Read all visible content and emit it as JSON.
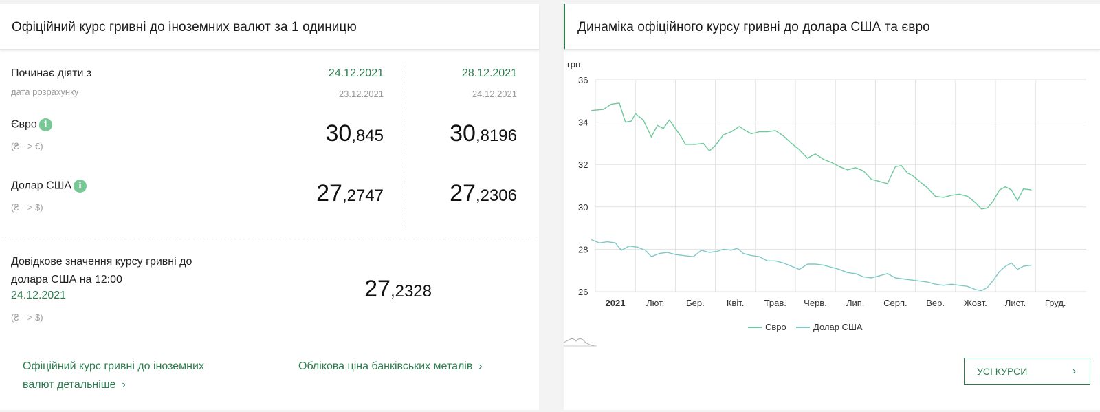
{
  "left": {
    "title": "Офіційний курс гривні до іноземних валют за 1 одиницю",
    "effective_label": "Починає діяти з",
    "calc_label": "дата розрахунку",
    "columns": [
      {
        "date": "24.12.2021",
        "calc_date": "23.12.2021"
      },
      {
        "date": "28.12.2021",
        "calc_date": "24.12.2021"
      }
    ],
    "currencies": [
      {
        "name": "Євро",
        "info": "i",
        "direction": "(₴ --> €)",
        "rates": [
          {
            "int": "30",
            "frac": ",845"
          },
          {
            "int": "30",
            "frac": ",8196"
          }
        ]
      },
      {
        "name": "Долар США",
        "info": "i",
        "direction": "(₴ --> $)",
        "rates": [
          {
            "int": "27",
            "frac": ",2747"
          },
          {
            "int": "27",
            "frac": ",2306"
          }
        ]
      }
    ],
    "reference": {
      "line1": "Довідкове значення курсу гривні до",
      "line2": "долара США на 12:00",
      "date": "24.12.2021",
      "direction": "(₴ --> $)",
      "int": "27",
      "frac": ",2328"
    },
    "links": {
      "details_line1": "Офіційний курс гривні до іноземних",
      "details_line2": "валют детальніше",
      "metals": "Облікова ціна банківських металів",
      "chevron": "›"
    }
  },
  "right": {
    "title": "Динаміка офіційного курсу гривні до долара США та євро",
    "button_label": "УСІ КУРСИ",
    "button_chevron": "›"
  },
  "chart_data": {
    "type": "line",
    "ylabel": "грн",
    "ylim": [
      26,
      36
    ],
    "yticks": [
      26,
      28,
      30,
      32,
      34,
      36
    ],
    "x_months": [
      "2021",
      "Лют.",
      "Бер.",
      "Квіт.",
      "Трав.",
      "Черв.",
      "Лип.",
      "Серп.",
      "Вер.",
      "Жовт.",
      "Лист.",
      "Груд."
    ],
    "grid": true,
    "legend_position": "bottom",
    "series": [
      {
        "name": "Євро",
        "color": "#6cc99a",
        "points": [
          [
            -0.1,
            34.55
          ],
          [
            0.2,
            34.6
          ],
          [
            0.4,
            34.85
          ],
          [
            0.6,
            34.9
          ],
          [
            0.75,
            34.0
          ],
          [
            0.9,
            34.05
          ],
          [
            1.0,
            34.4
          ],
          [
            1.2,
            34.1
          ],
          [
            1.4,
            33.3
          ],
          [
            1.55,
            33.85
          ],
          [
            1.7,
            33.7
          ],
          [
            1.85,
            34.1
          ],
          [
            2.0,
            33.7
          ],
          [
            2.15,
            33.3
          ],
          [
            2.25,
            32.95
          ],
          [
            2.5,
            32.95
          ],
          [
            2.7,
            33.0
          ],
          [
            2.85,
            32.65
          ],
          [
            3.0,
            32.9
          ],
          [
            3.2,
            33.4
          ],
          [
            3.4,
            33.55
          ],
          [
            3.6,
            33.8
          ],
          [
            3.75,
            33.6
          ],
          [
            3.9,
            33.45
          ],
          [
            4.1,
            33.55
          ],
          [
            4.3,
            33.55
          ],
          [
            4.5,
            33.6
          ],
          [
            4.7,
            33.35
          ],
          [
            4.9,
            33.0
          ],
          [
            5.1,
            32.7
          ],
          [
            5.3,
            32.3
          ],
          [
            5.5,
            32.5
          ],
          [
            5.7,
            32.25
          ],
          [
            5.9,
            32.1
          ],
          [
            6.1,
            31.9
          ],
          [
            6.3,
            31.75
          ],
          [
            6.5,
            31.85
          ],
          [
            6.7,
            31.7
          ],
          [
            6.9,
            31.3
          ],
          [
            7.1,
            31.2
          ],
          [
            7.3,
            31.1
          ],
          [
            7.5,
            31.9
          ],
          [
            7.65,
            31.95
          ],
          [
            7.8,
            31.6
          ],
          [
            7.95,
            31.45
          ],
          [
            8.1,
            31.2
          ],
          [
            8.3,
            30.9
          ],
          [
            8.5,
            30.5
          ],
          [
            8.7,
            30.45
          ],
          [
            8.9,
            30.55
          ],
          [
            9.1,
            30.6
          ],
          [
            9.3,
            30.5
          ],
          [
            9.5,
            30.2
          ],
          [
            9.65,
            29.9
          ],
          [
            9.8,
            29.95
          ],
          [
            9.95,
            30.3
          ],
          [
            10.1,
            30.8
          ],
          [
            10.25,
            30.95
          ],
          [
            10.4,
            30.8
          ],
          [
            10.55,
            30.3
          ],
          [
            10.7,
            30.85
          ],
          [
            10.9,
            30.8
          ]
        ]
      },
      {
        "name": "Долар США",
        "color": "#7ec9c8",
        "points": [
          [
            -0.1,
            28.45
          ],
          [
            0.1,
            28.3
          ],
          [
            0.3,
            28.35
          ],
          [
            0.5,
            28.3
          ],
          [
            0.65,
            27.95
          ],
          [
            0.85,
            28.15
          ],
          [
            1.05,
            28.1
          ],
          [
            1.25,
            27.95
          ],
          [
            1.4,
            27.65
          ],
          [
            1.6,
            27.8
          ],
          [
            1.8,
            27.85
          ],
          [
            2.0,
            27.75
          ],
          [
            2.2,
            27.7
          ],
          [
            2.45,
            27.65
          ],
          [
            2.65,
            27.95
          ],
          [
            2.85,
            27.85
          ],
          [
            3.05,
            27.9
          ],
          [
            3.2,
            28.0
          ],
          [
            3.4,
            27.95
          ],
          [
            3.55,
            28.05
          ],
          [
            3.7,
            27.8
          ],
          [
            3.9,
            27.7
          ],
          [
            4.1,
            27.65
          ],
          [
            4.3,
            27.45
          ],
          [
            4.5,
            27.45
          ],
          [
            4.7,
            27.35
          ],
          [
            4.9,
            27.2
          ],
          [
            5.1,
            27.05
          ],
          [
            5.3,
            27.3
          ],
          [
            5.5,
            27.3
          ],
          [
            5.7,
            27.25
          ],
          [
            5.9,
            27.15
          ],
          [
            6.1,
            27.05
          ],
          [
            6.3,
            26.9
          ],
          [
            6.5,
            26.85
          ],
          [
            6.7,
            26.7
          ],
          [
            6.9,
            26.65
          ],
          [
            7.1,
            26.75
          ],
          [
            7.3,
            26.85
          ],
          [
            7.5,
            26.65
          ],
          [
            7.7,
            26.6
          ],
          [
            7.9,
            26.55
          ],
          [
            8.1,
            26.5
          ],
          [
            8.3,
            26.45
          ],
          [
            8.5,
            26.35
          ],
          [
            8.7,
            26.3
          ],
          [
            8.9,
            26.35
          ],
          [
            9.1,
            26.3
          ],
          [
            9.3,
            26.25
          ],
          [
            9.5,
            26.1
          ],
          [
            9.65,
            26.05
          ],
          [
            9.8,
            26.2
          ],
          [
            9.95,
            26.55
          ],
          [
            10.1,
            26.95
          ],
          [
            10.25,
            27.2
          ],
          [
            10.4,
            27.35
          ],
          [
            10.55,
            27.05
          ],
          [
            10.7,
            27.2
          ],
          [
            10.9,
            27.25
          ]
        ]
      }
    ]
  }
}
